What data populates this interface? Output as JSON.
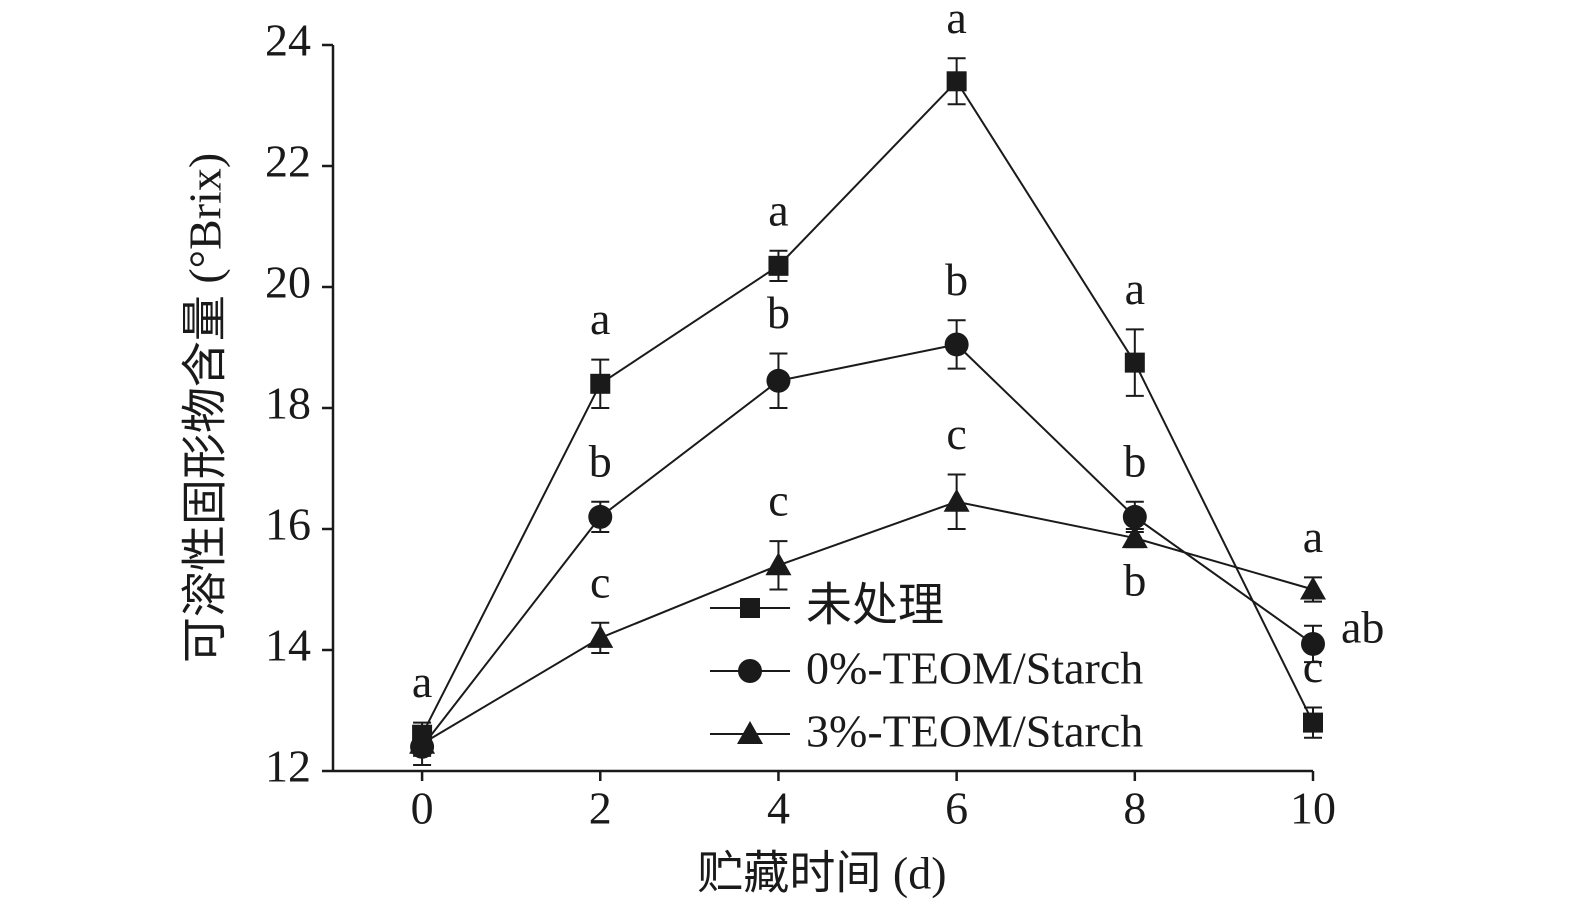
{
  "chart_data": {
    "type": "line",
    "x_label": "贮藏时间 (d)",
    "y_label": "可溶性固形物含量 (°Brix)",
    "x": [
      0,
      2,
      4,
      6,
      8,
      10
    ],
    "xlim": [
      -1,
      10
    ],
    "xticks": [
      0,
      2,
      4,
      6,
      8,
      10
    ],
    "ylim": [
      12,
      24
    ],
    "yticks": [
      12,
      14,
      16,
      18,
      20,
      22,
      24
    ],
    "legend": "lower center",
    "series": [
      {
        "name": "未处理",
        "color": "#1a1a1a",
        "marker": "square",
        "values": [
          12.6,
          18.4,
          20.35,
          23.4,
          18.75,
          12.8
        ],
        "errors": [
          0.2,
          0.4,
          0.25,
          0.38,
          0.55,
          0.25
        ],
        "letters": [
          "a",
          "a",
          "a",
          "a",
          "a",
          "c"
        ]
      },
      {
        "name": "0%-TEOM/Starch",
        "color": "#1a1a1a",
        "marker": "circle",
        "values": [
          12.4,
          16.2,
          18.45,
          19.05,
          16.2,
          14.1
        ],
        "errors": [
          0.3,
          0.25,
          0.45,
          0.4,
          0.25,
          0.3
        ],
        "letters": [
          null,
          "b",
          "b",
          "b",
          "b",
          "ab"
        ]
      },
      {
        "name": "3%-TEOM/Starch",
        "color": "#1a1a1a",
        "marker": "triangle",
        "values": [
          12.45,
          14.2,
          15.4,
          16.45,
          15.85,
          15.0
        ],
        "errors": [
          0.2,
          0.25,
          0.4,
          0.45,
          0.15,
          0.2
        ],
        "letters": [
          null,
          "c",
          "c",
          "c",
          "b",
          "a"
        ]
      }
    ]
  }
}
